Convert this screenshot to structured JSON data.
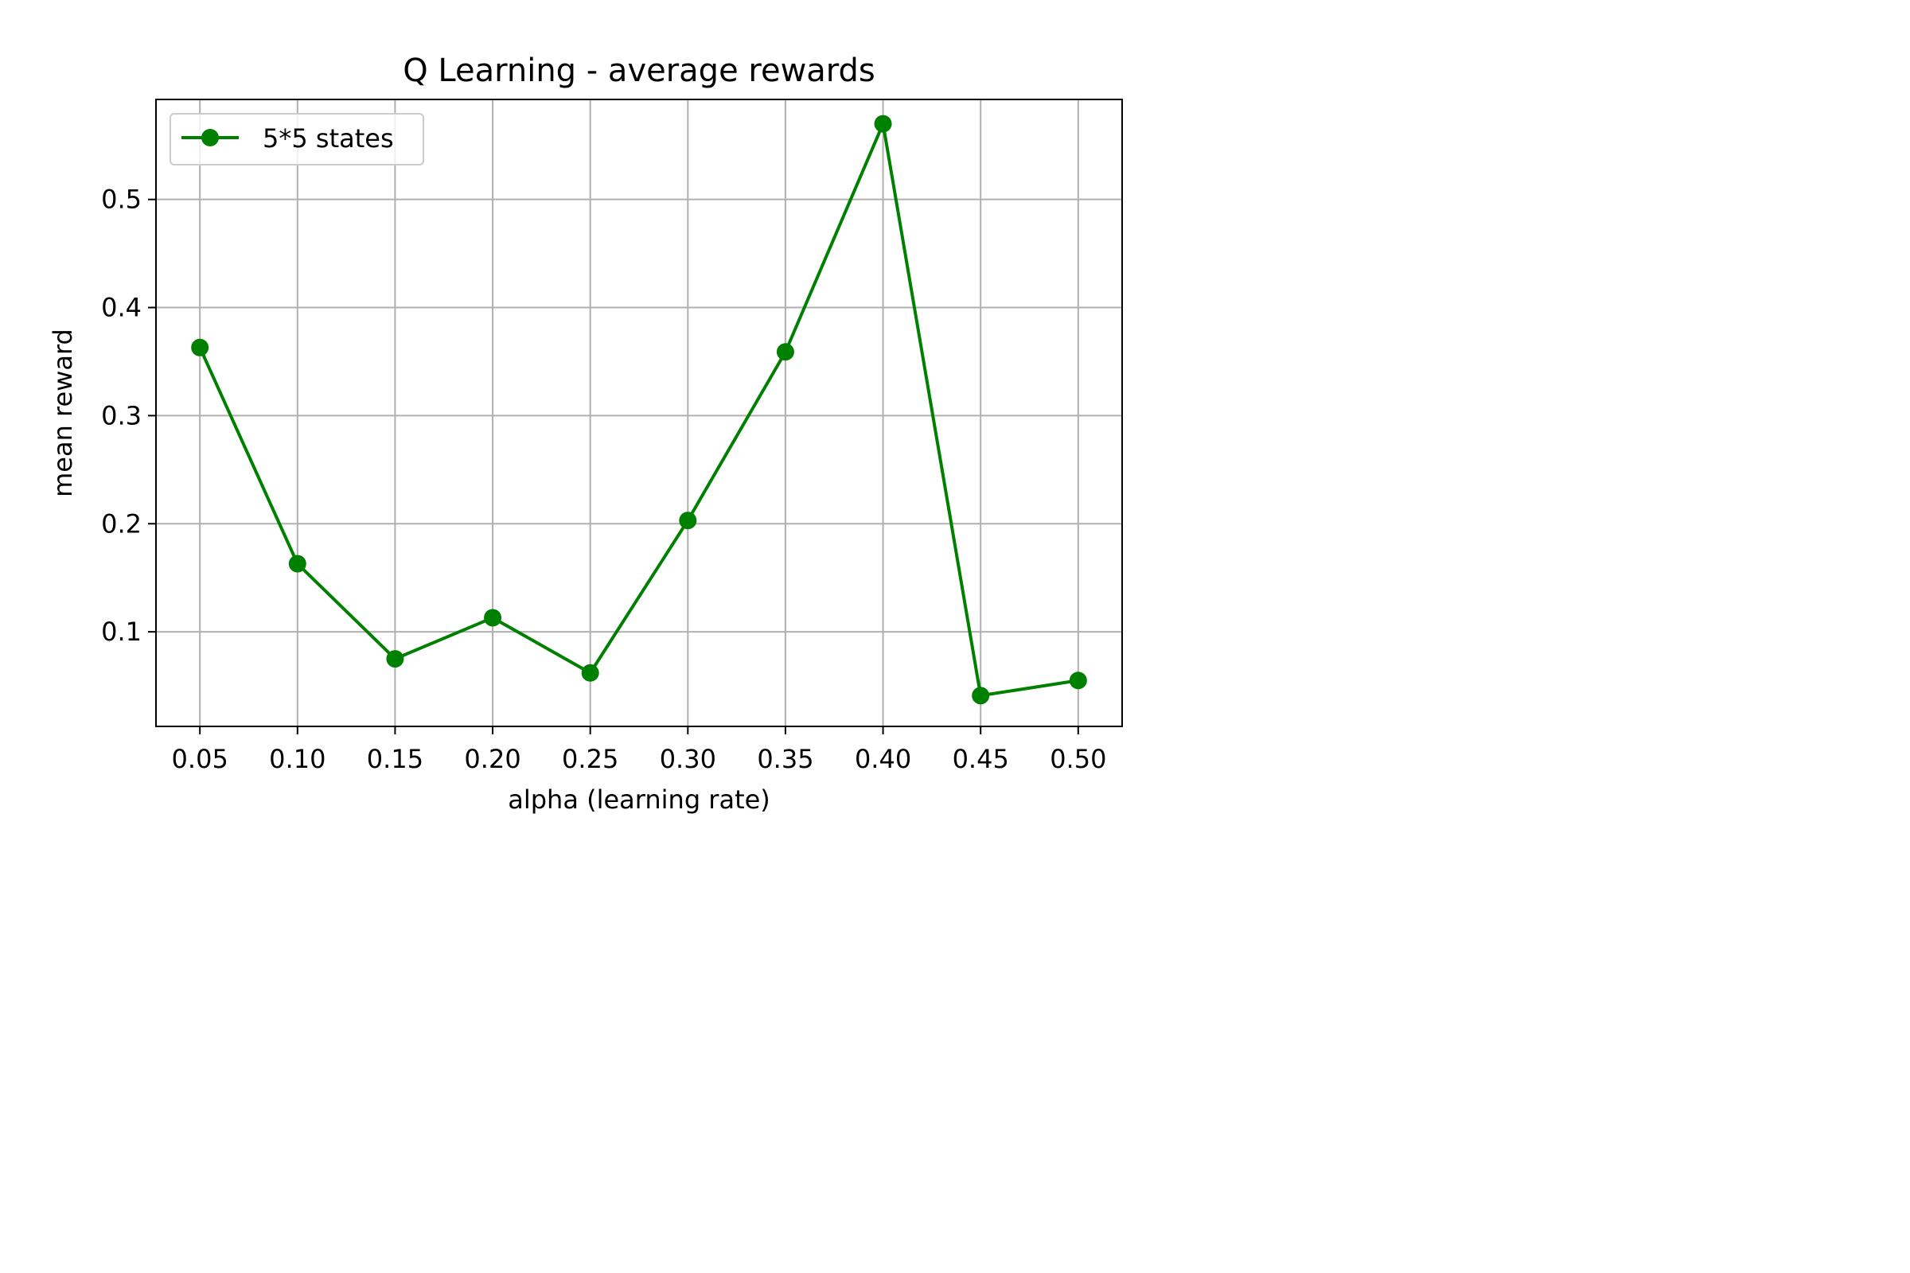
{
  "chart_data": {
    "type": "line",
    "title": "Q Learning - average rewards",
    "xlabel": "alpha (learning rate)",
    "ylabel": "mean reward",
    "x": [
      0.05,
      0.1,
      0.15,
      0.2,
      0.25,
      0.3,
      0.35,
      0.4,
      0.45,
      0.5
    ],
    "x_tick_labels": [
      "0.05",
      "0.10",
      "0.15",
      "0.20",
      "0.25",
      "0.30",
      "0.35",
      "0.40",
      "0.45",
      "0.50"
    ],
    "y_ticks": [
      0.1,
      0.2,
      0.3,
      0.4,
      0.5
    ],
    "y_tick_labels": [
      "0.1",
      "0.2",
      "0.3",
      "0.4",
      "0.5"
    ],
    "xlim": [
      0.0275,
      0.5225
    ],
    "ylim": [
      0.0125,
      0.5925
    ],
    "grid": true,
    "legend_position": "top-left",
    "series": [
      {
        "name": "5*5 states",
        "color": "#008000",
        "marker": "circle",
        "values": [
          0.363,
          0.163,
          0.075,
          0.113,
          0.062,
          0.203,
          0.359,
          0.57,
          0.041,
          0.055
        ]
      }
    ]
  }
}
